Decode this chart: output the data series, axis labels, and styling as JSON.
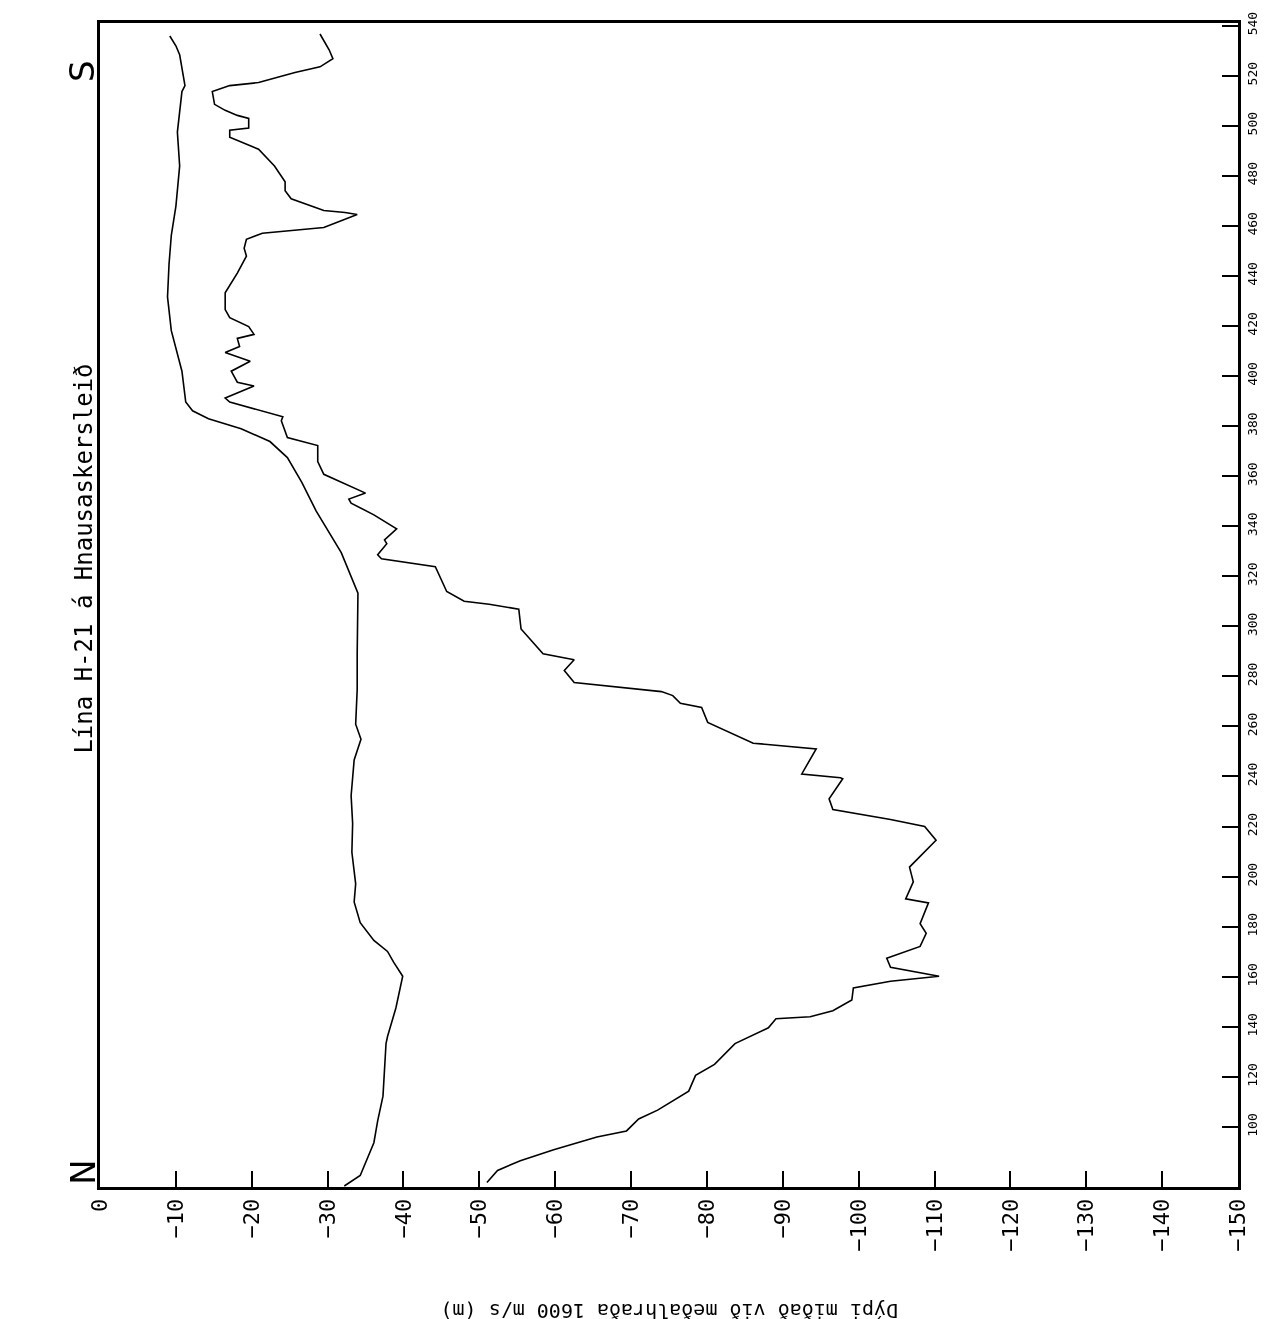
{
  "chart_data": {
    "type": "line",
    "title": "Lína H-21 á Hnausaskersleið",
    "xlabel": "Dýpi miðað við meðalhraða 1600 m/s (m)",
    "annotations": [
      "N",
      "S"
    ],
    "xlim": [
      0,
      -150
    ],
    "xticks": [
      0,
      -10,
      -20,
      -30,
      -40,
      -50,
      -60,
      -70,
      -80,
      -90,
      -100,
      -110,
      -120,
      -130,
      -140,
      -150
    ],
    "ylim": [
      76,
      541
    ],
    "yticks": [
      100,
      120,
      140,
      160,
      180,
      200,
      220,
      240,
      260,
      280,
      300,
      320,
      340,
      360,
      380,
      400,
      420,
      440,
      460,
      480,
      500,
      520,
      540
    ],
    "line_style": "solid",
    "series": [
      {
        "color": "#000000",
        "x": [
          -32.2,
          -34.3,
          -36.1,
          -36.6,
          -37.3,
          -37.7,
          -37.9,
          -39.0,
          -39.9,
          -38.7,
          -37.9,
          -36.1,
          -34.3,
          -33.5,
          -33.7,
          -33.2,
          -33.3,
          -33.1,
          -33.5,
          -34.4,
          -33.7,
          -33.9,
          -33.9,
          -34.0,
          -31.8,
          -28.5,
          -26.6,
          -24.7,
          -22.4,
          -18.6,
          -14.3,
          -12.2,
          -11.3,
          -10.8,
          -9.4,
          -8.9,
          -9.1,
          -9.4,
          -10.0,
          -10.5,
          -10.2,
          -10.8,
          -11.2,
          -10.5,
          -10.0,
          -9.2
        ],
        "values": [
          76.4,
          80.6,
          93.7,
          102.4,
          112.3,
          133.3,
          136.1,
          147.5,
          160.2,
          165.8,
          170.1,
          174.5,
          181.6,
          189.9,
          197.1,
          209.7,
          221.2,
          232.3,
          246.6,
          254.9,
          260.9,
          274.7,
          289.0,
          313.2,
          329.4,
          346.0,
          357.5,
          367.4,
          373.8,
          378.9,
          382.9,
          386.1,
          389.6,
          401.9,
          418.1,
          431.6,
          444.7,
          456.2,
          467.7,
          483.9,
          497.4,
          513.6,
          516.0,
          528.3,
          531.9,
          535.8
        ]
      },
      {
        "color": "#000000",
        "x": [
          -51.0,
          -52.4,
          -55.4,
          -59.8,
          -65.5,
          -69.4,
          -71.0,
          -73.5,
          -77.6,
          -78.5,
          -81.0,
          -83.7,
          -88.1,
          -89.1,
          -93.6,
          -96.6,
          -99.1,
          -99.3,
          -104.2,
          -110.6,
          -104.2,
          -103.7,
          -108.1,
          -108.9,
          -108.1,
          -109.2,
          -106.2,
          -107.2,
          -106.7,
          -110.2,
          -108.7,
          -104.2,
          -96.6,
          -96.1,
          -97.9,
          -97.6,
          -92.5,
          -94.4,
          -86.1,
          -80.1,
          -79.3,
          -76.5,
          -75.5,
          -74.0,
          -62.5,
          -61.2,
          -62.5,
          -58.4,
          -55.5,
          -55.2,
          -51.3,
          -48.0,
          -45.7,
          -44.2,
          -37.1,
          -36.6,
          -37.8,
          -37.5,
          -39.1,
          -36.1,
          -33.1,
          -32.8,
          -35.0,
          -29.5,
          -28.7,
          -28.7,
          -24.7,
          -23.9,
          -24.1,
          -17.1,
          -16.5,
          -20.3,
          -18.1,
          -17.3,
          -19.8,
          -16.5,
          -18.4,
          -18.1,
          -20.3,
          -19.6,
          -17.1,
          -16.5,
          -16.5,
          -18.1,
          -19.3,
          -19.0,
          -19.3,
          -21.4,
          -29.5,
          -33.9,
          -32.3,
          -29.5,
          -25.2,
          -24.4,
          -24.4,
          -23.0,
          -20.9,
          -17.1,
          -17.1,
          -19.6,
          -19.6,
          -18.1,
          -16.5,
          -15.1,
          -14.8,
          -17.1,
          -20.9,
          -25.7,
          -29.0,
          -30.7,
          -30.2,
          -29.3,
          -29.0
        ],
        "values": [
          77.8,
          82.6,
          86.5,
          90.9,
          96.0,
          98.4,
          103.2,
          106.7,
          114.3,
          120.6,
          125.0,
          133.3,
          139.6,
          143.2,
          144.0,
          146.4,
          150.7,
          155.5,
          158.2,
          160.2,
          163.8,
          167.4,
          172.1,
          177.3,
          181.2,
          189.5,
          191.1,
          197.9,
          203.8,
          214.5,
          220.0,
          222.8,
          226.8,
          231.1,
          239.1,
          239.5,
          241.0,
          251.0,
          253.3,
          261.6,
          267.6,
          269.2,
          272.3,
          273.9,
          277.5,
          282.3,
          286.6,
          289.0,
          298.9,
          306.8,
          308.8,
          310.0,
          313.9,
          323.8,
          327.0,
          328.6,
          333.0,
          334.5,
          338.9,
          344.5,
          349.2,
          350.8,
          353.2,
          360.7,
          365.8,
          372.2,
          375.4,
          382.1,
          383.7,
          389.6,
          391.2,
          396.0,
          397.5,
          401.9,
          405.9,
          409.4,
          411.8,
          415.0,
          416.6,
          419.7,
          423.3,
          426.5,
          433.2,
          441.1,
          447.9,
          451.0,
          454.6,
          457.0,
          459.3,
          464.5,
          465.3,
          466.1,
          470.8,
          474.0,
          477.6,
          483.9,
          490.6,
          495.4,
          498.2,
          499.0,
          502.9,
          504.1,
          506.1,
          508.5,
          513.6,
          516.0,
          517.2,
          521.2,
          523.5,
          526.7,
          530.3,
          535.0,
          536.6
        ]
      }
    ]
  }
}
